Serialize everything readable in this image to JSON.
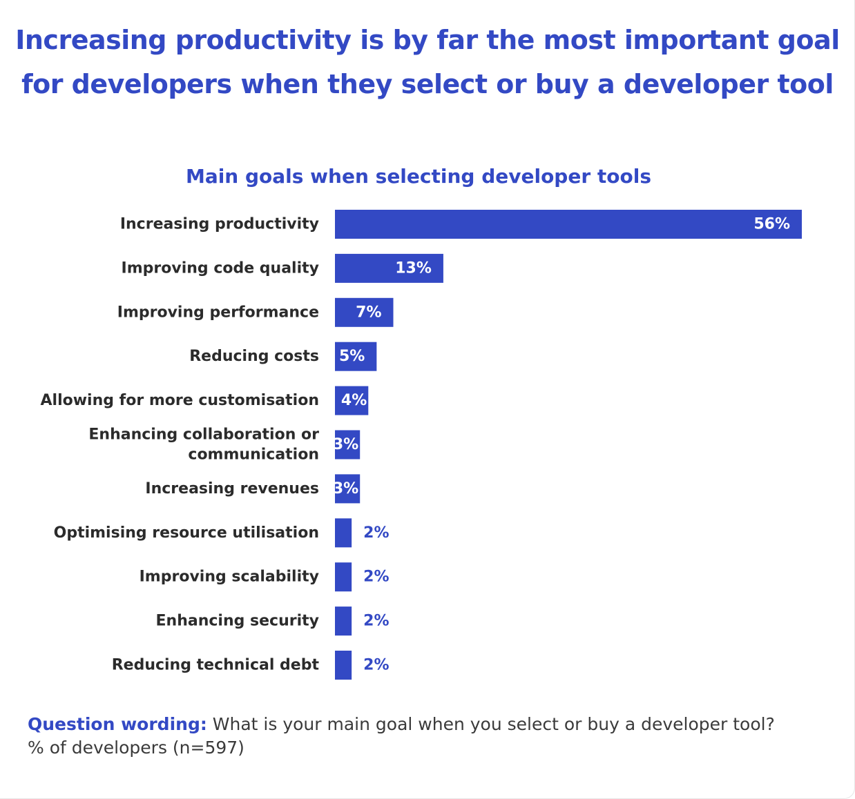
{
  "header": {
    "title": "Increasing productivity is by far the most important goal for developers when they select or buy a developer tool"
  },
  "chart_data": {
    "type": "bar",
    "orientation": "horizontal",
    "title": "Main goals when selecting developer tools",
    "categories": [
      [
        "Increasing productivity"
      ],
      [
        "Improving code quality"
      ],
      [
        "Improving performance"
      ],
      [
        "Reducing costs"
      ],
      [
        "Allowing for more customisation"
      ],
      [
        "Enhancing collaboration or",
        "communication"
      ],
      [
        "Increasing revenues"
      ],
      [
        "Optimising resource utilisation"
      ],
      [
        "Improving scalability"
      ],
      [
        "Enhancing security"
      ],
      [
        "Reducing technical debt"
      ]
    ],
    "values": [
      56,
      13,
      7,
      5,
      4,
      3,
      3,
      2,
      2,
      2,
      2
    ],
    "value_labels": [
      "56%",
      "13%",
      "7%",
      "5%",
      "4%",
      "3%",
      "3%",
      "2%",
      "2%",
      "2%",
      "2%"
    ],
    "xlim": [
      0,
      56
    ],
    "grid": false,
    "legend": "none",
    "bar_color": "#3349c4",
    "label_inside_color": "#ffffff",
    "label_outside_color": "#3349c4"
  },
  "footer": {
    "question_label": "Question wording:",
    "question_text": " What is your main goal when you select or buy a developer tool?",
    "note": "% of developers (n=597)"
  }
}
